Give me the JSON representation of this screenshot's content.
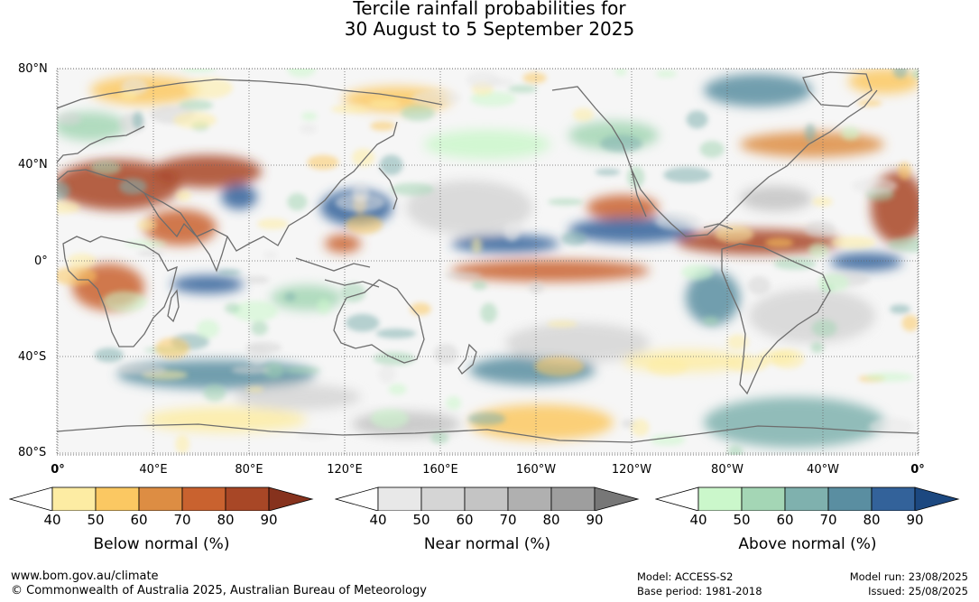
{
  "title": {
    "line1": "Tercile rainfall probabilities for",
    "line2": "30 August to 5 September 2025"
  },
  "map": {
    "lat_labels": [
      "80°N",
      "40°N",
      "0°",
      "40°S",
      "80°S"
    ],
    "lon_labels": [
      "0°",
      "40°E",
      "80°E",
      "120°E",
      "160°E",
      "160°W",
      "120°W",
      "80°W",
      "40°W",
      "0°"
    ]
  },
  "colorbars": [
    {
      "title": "Below normal (%)",
      "ticks": [
        "40",
        "50",
        "60",
        "70",
        "80",
        "90"
      ],
      "colors": [
        "#ffffff",
        "#fdeca3",
        "#fbc862",
        "#dd8d43",
        "#c9622f",
        "#a84726",
        "#86321d"
      ]
    },
    {
      "title": "Near normal (%)",
      "ticks": [
        "40",
        "50",
        "60",
        "70",
        "80",
        "90"
      ],
      "colors": [
        "#ffffff",
        "#e8e8e8",
        "#d5d5d5",
        "#c4c4c4",
        "#b0b0b0",
        "#9e9e9e",
        "#777777"
      ]
    },
    {
      "title": "Above normal (%)",
      "ticks": [
        "40",
        "50",
        "60",
        "70",
        "80",
        "90"
      ],
      "colors": [
        "#ffffff",
        "#cbf7cb",
        "#a4d6b5",
        "#7fb1ae",
        "#5a8ea1",
        "#33629a",
        "#1c4880"
      ]
    }
  ],
  "footer": {
    "website": "www.bom.gov.au/climate",
    "copyright": "© Commonwealth of Australia 2025, Australian Bureau of Meteorology",
    "model": "Model: ACCESS-S2",
    "base_period": "Base period: 1981-2018",
    "model_run": "Model run: 23/08/2025",
    "issued": "Issued: 25/08/2025"
  }
}
